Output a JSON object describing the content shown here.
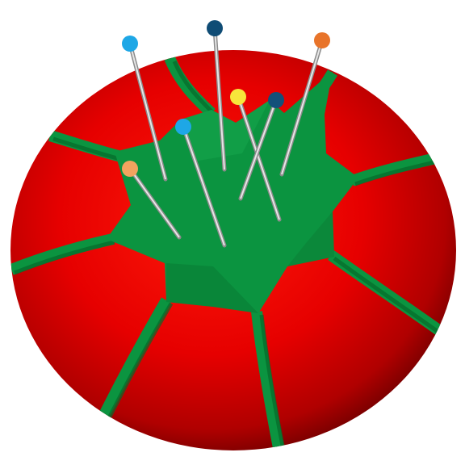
{
  "illustration": {
    "subject": "tomato-pincushion",
    "colors": {
      "cushion_light": "#ff1a0a",
      "cushion_mid": "#e00000",
      "cushion_dark": "#9a0000",
      "cushion_edge": "#6a0000",
      "leaf": "#0b9440",
      "leaf_dark": "#0a7a33",
      "leaf_shadow": "#055a24",
      "pin_shaft_light": "#e6e6e6",
      "pin_shaft_dark": "#8c8c8c",
      "background": "#ffffff"
    },
    "pins": [
      {
        "name": "pin-blue-left",
        "color": "#1ea7e6"
      },
      {
        "name": "pin-navy-top",
        "color": "#0f4c75"
      },
      {
        "name": "pin-orange-right",
        "color": "#e8742a"
      },
      {
        "name": "pin-yellow",
        "color": "#f7e63b"
      },
      {
        "name": "pin-navy-mid",
        "color": "#12507a"
      },
      {
        "name": "pin-blue-mid",
        "color": "#1ea7e6"
      },
      {
        "name": "pin-peach",
        "color": "#f3a35f"
      }
    ]
  }
}
